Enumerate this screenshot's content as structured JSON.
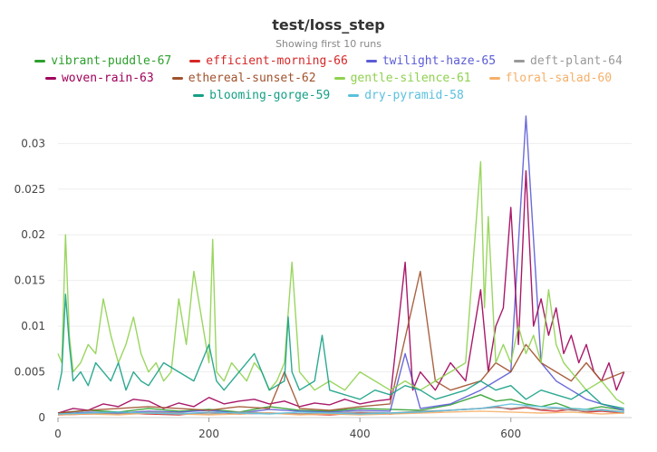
{
  "chart_data": {
    "type": "line",
    "title": "test/loss_step",
    "subtitle": "Showing first 10 runs",
    "xlabel": "",
    "ylabel": "",
    "xlim": [
      0,
      760
    ],
    "ylim": [
      0,
      0.034
    ],
    "x_ticks": [
      0,
      200,
      400,
      600
    ],
    "x_tick_labels": [
      "0",
      "200",
      "400",
      "600"
    ],
    "y_ticks": [
      0,
      0.005,
      0.01,
      0.015,
      0.02,
      0.025,
      0.03
    ],
    "y_tick_labels": [
      "0",
      "0.005",
      "0.01",
      "0.015",
      "0.02",
      "0.025",
      "0.03"
    ],
    "grid": true,
    "legend_position": "top",
    "series": [
      {
        "name": "vibrant-puddle-67",
        "color": "#2ca02c",
        "x": [
          0,
          40,
          80,
          120,
          160,
          200,
          240,
          280,
          320,
          360,
          400,
          440,
          480,
          520,
          560,
          580,
          600,
          620,
          640,
          660,
          680,
          700,
          720,
          750
        ],
        "y": [
          0.0005,
          0.0008,
          0.0006,
          0.001,
          0.0007,
          0.0009,
          0.0006,
          0.0012,
          0.0008,
          0.0007,
          0.001,
          0.0009,
          0.0008,
          0.0014,
          0.0025,
          0.0018,
          0.002,
          0.0015,
          0.0012,
          0.0016,
          0.001,
          0.0009,
          0.0012,
          0.0008
        ]
      },
      {
        "name": "efficient-morning-66",
        "color": "#d62728",
        "x": [
          0,
          40,
          80,
          120,
          160,
          200,
          240,
          280,
          320,
          360,
          400,
          440,
          480,
          520,
          560,
          580,
          600,
          620,
          640,
          660,
          680,
          700,
          720,
          750
        ],
        "y": [
          0.0003,
          0.0004,
          0.0005,
          0.0004,
          0.0003,
          0.0006,
          0.0004,
          0.0005,
          0.0004,
          0.0003,
          0.0005,
          0.0004,
          0.0006,
          0.0008,
          0.001,
          0.0012,
          0.0009,
          0.0011,
          0.0008,
          0.0007,
          0.0009,
          0.0006,
          0.0007,
          0.0005
        ]
      },
      {
        "name": "twilight-haze-65",
        "color": "#5b5bd6",
        "x": [
          0,
          40,
          80,
          120,
          160,
          200,
          240,
          280,
          320,
          360,
          400,
          440,
          460,
          480,
          520,
          560,
          580,
          600,
          620,
          640,
          660,
          680,
          700,
          720,
          750
        ],
        "y": [
          0.0004,
          0.0006,
          0.0005,
          0.0007,
          0.0006,
          0.0008,
          0.0005,
          0.0009,
          0.0007,
          0.0006,
          0.0008,
          0.0007,
          0.007,
          0.001,
          0.0015,
          0.003,
          0.004,
          0.005,
          0.033,
          0.006,
          0.004,
          0.003,
          0.002,
          0.0015,
          0.0008
        ]
      },
      {
        "name": "deft-plant-64",
        "color": "#999999",
        "x": [
          0,
          40,
          80,
          120,
          160,
          200,
          240,
          280,
          320,
          360,
          400,
          440,
          480,
          520,
          560,
          580,
          600,
          620,
          640,
          660,
          680,
          700,
          720,
          750
        ],
        "y": [
          0.0004,
          0.0005,
          0.0004,
          0.0006,
          0.0005,
          0.0004,
          0.0006,
          0.0005,
          0.0004,
          0.0005,
          0.0006,
          0.0005,
          0.0007,
          0.0008,
          0.001,
          0.0011,
          0.001,
          0.0012,
          0.0009,
          0.001,
          0.0008,
          0.0007,
          0.0009,
          0.0006
        ]
      },
      {
        "name": "woven-rain-63",
        "color": "#a0005a",
        "x": [
          0,
          20,
          40,
          60,
          80,
          100,
          120,
          140,
          160,
          180,
          200,
          220,
          240,
          260,
          280,
          300,
          320,
          340,
          360,
          380,
          400,
          420,
          440,
          460,
          470,
          480,
          500,
          520,
          540,
          560,
          570,
          580,
          590,
          600,
          610,
          620,
          630,
          640,
          650,
          660,
          670,
          680,
          690,
          700,
          710,
          720,
          730,
          740,
          750
        ],
        "y": [
          0.0005,
          0.001,
          0.0008,
          0.0015,
          0.0012,
          0.002,
          0.0018,
          0.001,
          0.0016,
          0.0012,
          0.0022,
          0.0015,
          0.0018,
          0.002,
          0.0015,
          0.0018,
          0.0012,
          0.0016,
          0.0014,
          0.002,
          0.0015,
          0.0018,
          0.002,
          0.017,
          0.003,
          0.005,
          0.003,
          0.006,
          0.004,
          0.014,
          0.005,
          0.01,
          0.012,
          0.023,
          0.008,
          0.027,
          0.01,
          0.013,
          0.009,
          0.012,
          0.007,
          0.009,
          0.006,
          0.008,
          0.005,
          0.004,
          0.006,
          0.003,
          0.005
        ]
      },
      {
        "name": "ethereal-sunset-62",
        "color": "#a0522d",
        "x": [
          0,
          40,
          80,
          120,
          160,
          200,
          240,
          280,
          300,
          320,
          360,
          400,
          440,
          480,
          500,
          520,
          560,
          580,
          600,
          620,
          640,
          660,
          680,
          700,
          720,
          750
        ],
        "y": [
          0.0005,
          0.0008,
          0.001,
          0.0012,
          0.001,
          0.0008,
          0.0012,
          0.001,
          0.005,
          0.001,
          0.0008,
          0.0012,
          0.0015,
          0.016,
          0.004,
          0.003,
          0.004,
          0.006,
          0.005,
          0.008,
          0.006,
          0.005,
          0.004,
          0.006,
          0.004,
          0.005
        ]
      },
      {
        "name": "gentle-silence-61",
        "color": "#8fd14f",
        "x": [
          0,
          5,
          10,
          15,
          20,
          30,
          40,
          50,
          60,
          70,
          80,
          90,
          100,
          110,
          120,
          130,
          140,
          150,
          160,
          170,
          180,
          200,
          205,
          210,
          220,
          230,
          240,
          250,
          260,
          270,
          280,
          290,
          300,
          310,
          320,
          340,
          360,
          380,
          400,
          420,
          440,
          460,
          480,
          500,
          520,
          540,
          560,
          565,
          570,
          580,
          590,
          600,
          610,
          620,
          630,
          640,
          650,
          660,
          670,
          680,
          690,
          700,
          720,
          740,
          750
        ],
        "y": [
          0.007,
          0.006,
          0.02,
          0.009,
          0.005,
          0.006,
          0.008,
          0.007,
          0.013,
          0.009,
          0.006,
          0.008,
          0.011,
          0.007,
          0.005,
          0.006,
          0.004,
          0.005,
          0.013,
          0.008,
          0.016,
          0.006,
          0.0195,
          0.005,
          0.004,
          0.006,
          0.005,
          0.004,
          0.006,
          0.005,
          0.003,
          0.004,
          0.006,
          0.017,
          0.005,
          0.003,
          0.004,
          0.003,
          0.005,
          0.004,
          0.003,
          0.004,
          0.003,
          0.004,
          0.005,
          0.006,
          0.028,
          0.012,
          0.022,
          0.006,
          0.008,
          0.006,
          0.01,
          0.007,
          0.009,
          0.006,
          0.014,
          0.008,
          0.006,
          0.005,
          0.004,
          0.003,
          0.004,
          0.002,
          0.0015
        ]
      },
      {
        "name": "floral-salad-60",
        "color": "#f5b06a",
        "x": [
          0,
          40,
          80,
          120,
          160,
          200,
          240,
          280,
          320,
          360,
          400,
          440,
          480,
          520,
          560,
          600,
          640,
          680,
          720,
          750
        ],
        "y": [
          0.0003,
          0.0004,
          0.0003,
          0.0005,
          0.0004,
          0.0003,
          0.0004,
          0.0005,
          0.0003,
          0.0004,
          0.0003,
          0.0004,
          0.0005,
          0.0006,
          0.0007,
          0.0006,
          0.0005,
          0.0006,
          0.0004,
          0.0005
        ]
      },
      {
        "name": "blooming-gorge-59",
        "color": "#16a085",
        "x": [
          0,
          5,
          10,
          15,
          20,
          30,
          40,
          50,
          60,
          70,
          80,
          90,
          100,
          110,
          120,
          140,
          160,
          180,
          200,
          210,
          220,
          240,
          260,
          280,
          300,
          305,
          310,
          320,
          340,
          350,
          360,
          380,
          400,
          420,
          440,
          460,
          480,
          500,
          520,
          540,
          560,
          580,
          600,
          620,
          640,
          660,
          680,
          700,
          720,
          750
        ],
        "y": [
          0.003,
          0.005,
          0.0135,
          0.008,
          0.004,
          0.005,
          0.0035,
          0.006,
          0.005,
          0.004,
          0.006,
          0.003,
          0.005,
          0.004,
          0.0035,
          0.006,
          0.005,
          0.004,
          0.008,
          0.004,
          0.003,
          0.005,
          0.007,
          0.003,
          0.004,
          0.011,
          0.005,
          0.003,
          0.004,
          0.009,
          0.003,
          0.0025,
          0.002,
          0.003,
          0.0025,
          0.0035,
          0.003,
          0.002,
          0.0025,
          0.003,
          0.004,
          0.003,
          0.0035,
          0.002,
          0.003,
          0.0025,
          0.002,
          0.003,
          0.0015,
          0.001
        ]
      },
      {
        "name": "dry-pyramid-58",
        "color": "#5bc0de",
        "x": [
          0,
          40,
          80,
          120,
          160,
          200,
          240,
          280,
          320,
          360,
          400,
          440,
          480,
          520,
          560,
          600,
          640,
          680,
          720,
          750
        ],
        "y": [
          0.0004,
          0.0005,
          0.0006,
          0.0005,
          0.0004,
          0.0006,
          0.0005,
          0.0004,
          0.0006,
          0.0005,
          0.0004,
          0.0005,
          0.0006,
          0.0008,
          0.001,
          0.0015,
          0.0012,
          0.001,
          0.0008,
          0.0006
        ]
      }
    ]
  }
}
